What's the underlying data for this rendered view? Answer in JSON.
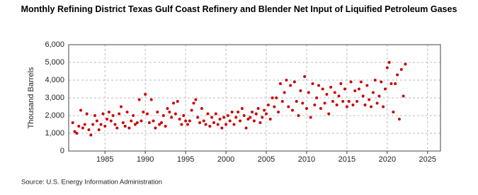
{
  "chart_data": {
    "type": "scatter",
    "title": "Monthly Refining District Texas Gulf Coast Refinery and Blender Net Input of Liquified Petroleum Gases",
    "y_label": "Thousand Barrels",
    "source": "Source: U.S. Energy Information Administration",
    "xlim": [
      1980.5,
      2026.6
    ],
    "xticks": [
      1985,
      1990,
      1995,
      2000,
      2005,
      2010,
      2015,
      2020,
      2025
    ],
    "ylim": [
      0,
      6000
    ],
    "yticks": [
      0,
      {
        "value": 1000,
        "label": "1,000"
      },
      {
        "value": 2000,
        "label": "2,000"
      },
      {
        "value": 3000,
        "label": "3,000"
      },
      {
        "value": 4000,
        "label": "4,000"
      },
      {
        "value": 5000,
        "label": "5,000"
      },
      {
        "value": 6000,
        "label": "6,000"
      }
    ],
    "grid": true,
    "color": "#cc0000",
    "x": [
      1981,
      1981.25,
      1981.5,
      1981.75,
      1982,
      1982.25,
      1982.5,
      1982.75,
      1983,
      1983.25,
      1983.5,
      1983.75,
      1984,
      1984.25,
      1984.5,
      1984.75,
      1985,
      1985.25,
      1985.5,
      1985.75,
      1986,
      1986.25,
      1986.5,
      1986.75,
      1987,
      1987.25,
      1987.5,
      1987.75,
      1988,
      1988.25,
      1988.5,
      1988.75,
      1989,
      1989.25,
      1989.5,
      1989.75,
      1990,
      1990.25,
      1990.5,
      1990.75,
      1991,
      1991.25,
      1991.5,
      1991.75,
      1992,
      1992.25,
      1992.5,
      1992.75,
      1993,
      1993.25,
      1993.5,
      1993.75,
      1994,
      1994.25,
      1994.5,
      1994.75,
      1995,
      1995.25,
      1995.5,
      1995.75,
      1996,
      1996.25,
      1996.5,
      1996.75,
      1997,
      1997.25,
      1997.5,
      1997.75,
      1998,
      1998.25,
      1998.5,
      1998.75,
      1999,
      1999.25,
      1999.5,
      1999.75,
      2000,
      2000.25,
      2000.5,
      2000.75,
      2001,
      2001.25,
      2001.5,
      2001.75,
      2002,
      2002.25,
      2002.5,
      2002.75,
      2003,
      2003.25,
      2003.5,
      2003.75,
      2004,
      2004.25,
      2004.5,
      2004.75,
      2005,
      2005.25,
      2005.5,
      2005.75,
      2006,
      2006.25,
      2006.5,
      2006.75,
      2007,
      2007.25,
      2007.5,
      2007.75,
      2008,
      2008.25,
      2008.5,
      2008.75,
      2009,
      2009.25,
      2009.5,
      2009.75,
      2010,
      2010.25,
      2010.5,
      2010.75,
      2011,
      2011.25,
      2011.5,
      2011.75,
      2012,
      2012.25,
      2012.5,
      2012.75,
      2013,
      2013.25,
      2013.5,
      2013.75,
      2014,
      2014.25,
      2014.5,
      2014.75,
      2015,
      2015.25,
      2015.5,
      2015.75,
      2016,
      2016.25,
      2016.5,
      2016.75,
      2017,
      2017.25,
      2017.5,
      2017.75,
      2018,
      2018.25,
      2018.5,
      2018.75,
      2019,
      2019.25,
      2019.5,
      2019.75,
      2020,
      2020.25,
      2020.5,
      2020.75,
      2021,
      2021.25,
      2021.5,
      2021.75,
      2022,
      2022.25
    ],
    "values": [
      1600,
      1100,
      1000,
      1400,
      2300,
      1300,
      1500,
      2100,
      1200,
      900,
      1500,
      2000,
      1700,
      1200,
      1500,
      2100,
      1400,
      1800,
      2200,
      1700,
      2000,
      1500,
      1300,
      2100,
      2500,
      1600,
      1400,
      2200,
      1300,
      1700,
      2000,
      1500,
      1600,
      2900,
      1700,
      2200,
      3200,
      2100,
      1600,
      2900,
      1700,
      1300,
      2200,
      1500,
      1600,
      2000,
      1400,
      2400,
      2200,
      1900,
      2700,
      2100,
      2800,
      1800,
      1500,
      2000,
      1700,
      1500,
      1700,
      2300,
      2700,
      2900,
      1900,
      1600,
      2400,
      1700,
      1500,
      2100,
      1400,
      1900,
      1600,
      2100,
      1500,
      1800,
      1300,
      1900,
      1500,
      2000,
      1700,
      2200,
      1500,
      1900,
      2200,
      1700,
      2400,
      2000,
      1300,
      1800,
      1900,
      2200,
      1700,
      2100,
      2400,
      1600,
      1900,
      2300,
      2100,
      2600,
      1800,
      3000,
      2500,
      3000,
      2200,
      3800,
      2800,
      3300,
      4000,
      2500,
      3700,
      2300,
      3900,
      2800,
      2000,
      3400,
      2700,
      4200,
      2400,
      3300,
      1900,
      3800,
      2600,
      3000,
      3700,
      2400,
      3500,
      2700,
      3200,
      2100,
      3600,
      2800,
      3300,
      2600,
      3100,
      3800,
      2800,
      3500,
      2500,
      2800,
      3900,
      2600,
      3400,
      2800,
      3500,
      3900,
      3100,
      2600,
      3700,
      2900,
      2500,
      3300,
      4000,
      2700,
      3100,
      3900,
      2500,
      3500,
      4700,
      5000,
      3800,
      2200,
      3800,
      4300,
      1800,
      4600,
      3100,
      4900
    ]
  }
}
